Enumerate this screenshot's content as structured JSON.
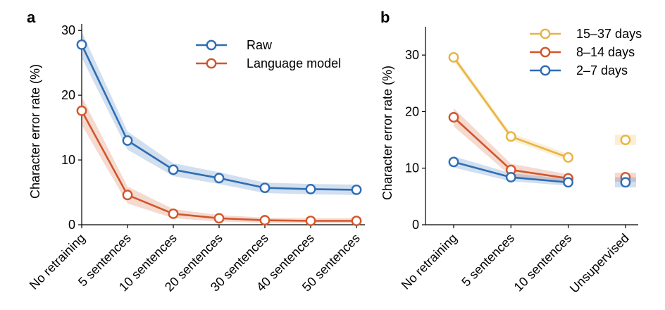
{
  "chart_data": [
    {
      "panel": "a",
      "type": "line",
      "categories": [
        "No retraining",
        "5 sentences",
        "10 sentences",
        "20 sentences",
        "30 sentences",
        "40 sentences",
        "50 sentences"
      ],
      "ylabel": "Character error rate (%)",
      "ylim": [
        0,
        31
      ],
      "yticks": [
        0,
        10,
        20,
        30
      ],
      "legend_position": "top-right",
      "series": [
        {
          "name": "Raw",
          "color": "#2E6DB4",
          "values": [
            27.8,
            13.0,
            8.5,
            7.2,
            5.7,
            5.5,
            5.4
          ],
          "band": [
            2.0,
            1.4,
            1.0,
            0.9,
            0.8,
            0.8,
            0.8
          ]
        },
        {
          "name": "Language model",
          "color": "#D2562B",
          "values": [
            17.6,
            4.6,
            1.7,
            1.0,
            0.7,
            0.6,
            0.6
          ],
          "band": [
            2.2,
            1.3,
            0.7,
            0.5,
            0.4,
            0.4,
            0.4
          ]
        }
      ]
    },
    {
      "panel": "b",
      "type": "line",
      "categories": [
        "No retraining",
        "5 sentences",
        "10 sentences",
        "Unsupervised"
      ],
      "ylabel": "Character error rate (%)",
      "ylim": [
        0,
        35
      ],
      "yticks": [
        0,
        10,
        20,
        30
      ],
      "legend_position": "top-right",
      "series": [
        {
          "name": "15–37 days",
          "color": "#E8B440",
          "values": [
            29.6,
            15.6,
            11.9,
            15.0
          ],
          "band": [
            0.6,
            0.6,
            0.6,
            0.9
          ]
        },
        {
          "name": "8–14 days",
          "color": "#D2562B",
          "values": [
            19.0,
            9.7,
            8.2,
            8.4
          ],
          "band": [
            1.6,
            1.1,
            0.7,
            0.8
          ]
        },
        {
          "name": "2–7 days",
          "color": "#2E6DB4",
          "values": [
            11.1,
            8.4,
            7.5,
            7.5
          ],
          "band": [
            1.0,
            0.7,
            0.6,
            0.9
          ]
        }
      ]
    }
  ],
  "labels": {
    "panel_a": "a",
    "panel_b": "b"
  }
}
